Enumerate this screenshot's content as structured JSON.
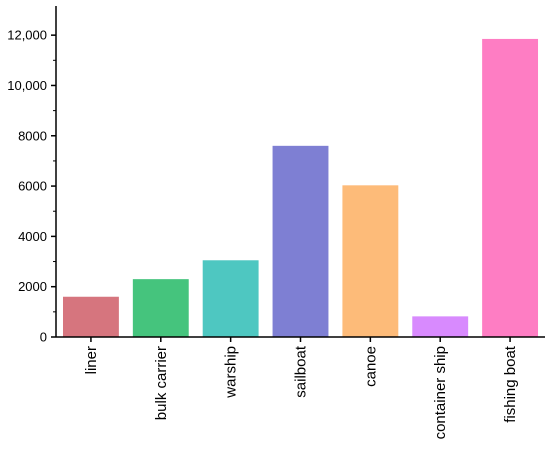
{
  "chart_data": {
    "type": "bar",
    "title": "",
    "xlabel": "",
    "ylabel": "",
    "categories": [
      "liner",
      "bulk carrier",
      "warship",
      "sailboat",
      "canoe",
      "container ship",
      "fishing boat"
    ],
    "values": [
      1600,
      2300,
      3050,
      7600,
      6030,
      820,
      11850
    ],
    "colors": [
      "#d6757e",
      "#45c47d",
      "#4ec7c1",
      "#7e7fd3",
      "#fdbb79",
      "#d88afe",
      "#fe7dc3"
    ],
    "ylim": [
      0,
      13000
    ],
    "yticks": [
      0,
      2000,
      4000,
      6000,
      8000,
      10000,
      12000
    ],
    "ytick_labels": [
      "0",
      "2000",
      "4000",
      "6000",
      "8000",
      "10,000",
      "12,000"
    ],
    "grid": false,
    "legend": "none"
  }
}
